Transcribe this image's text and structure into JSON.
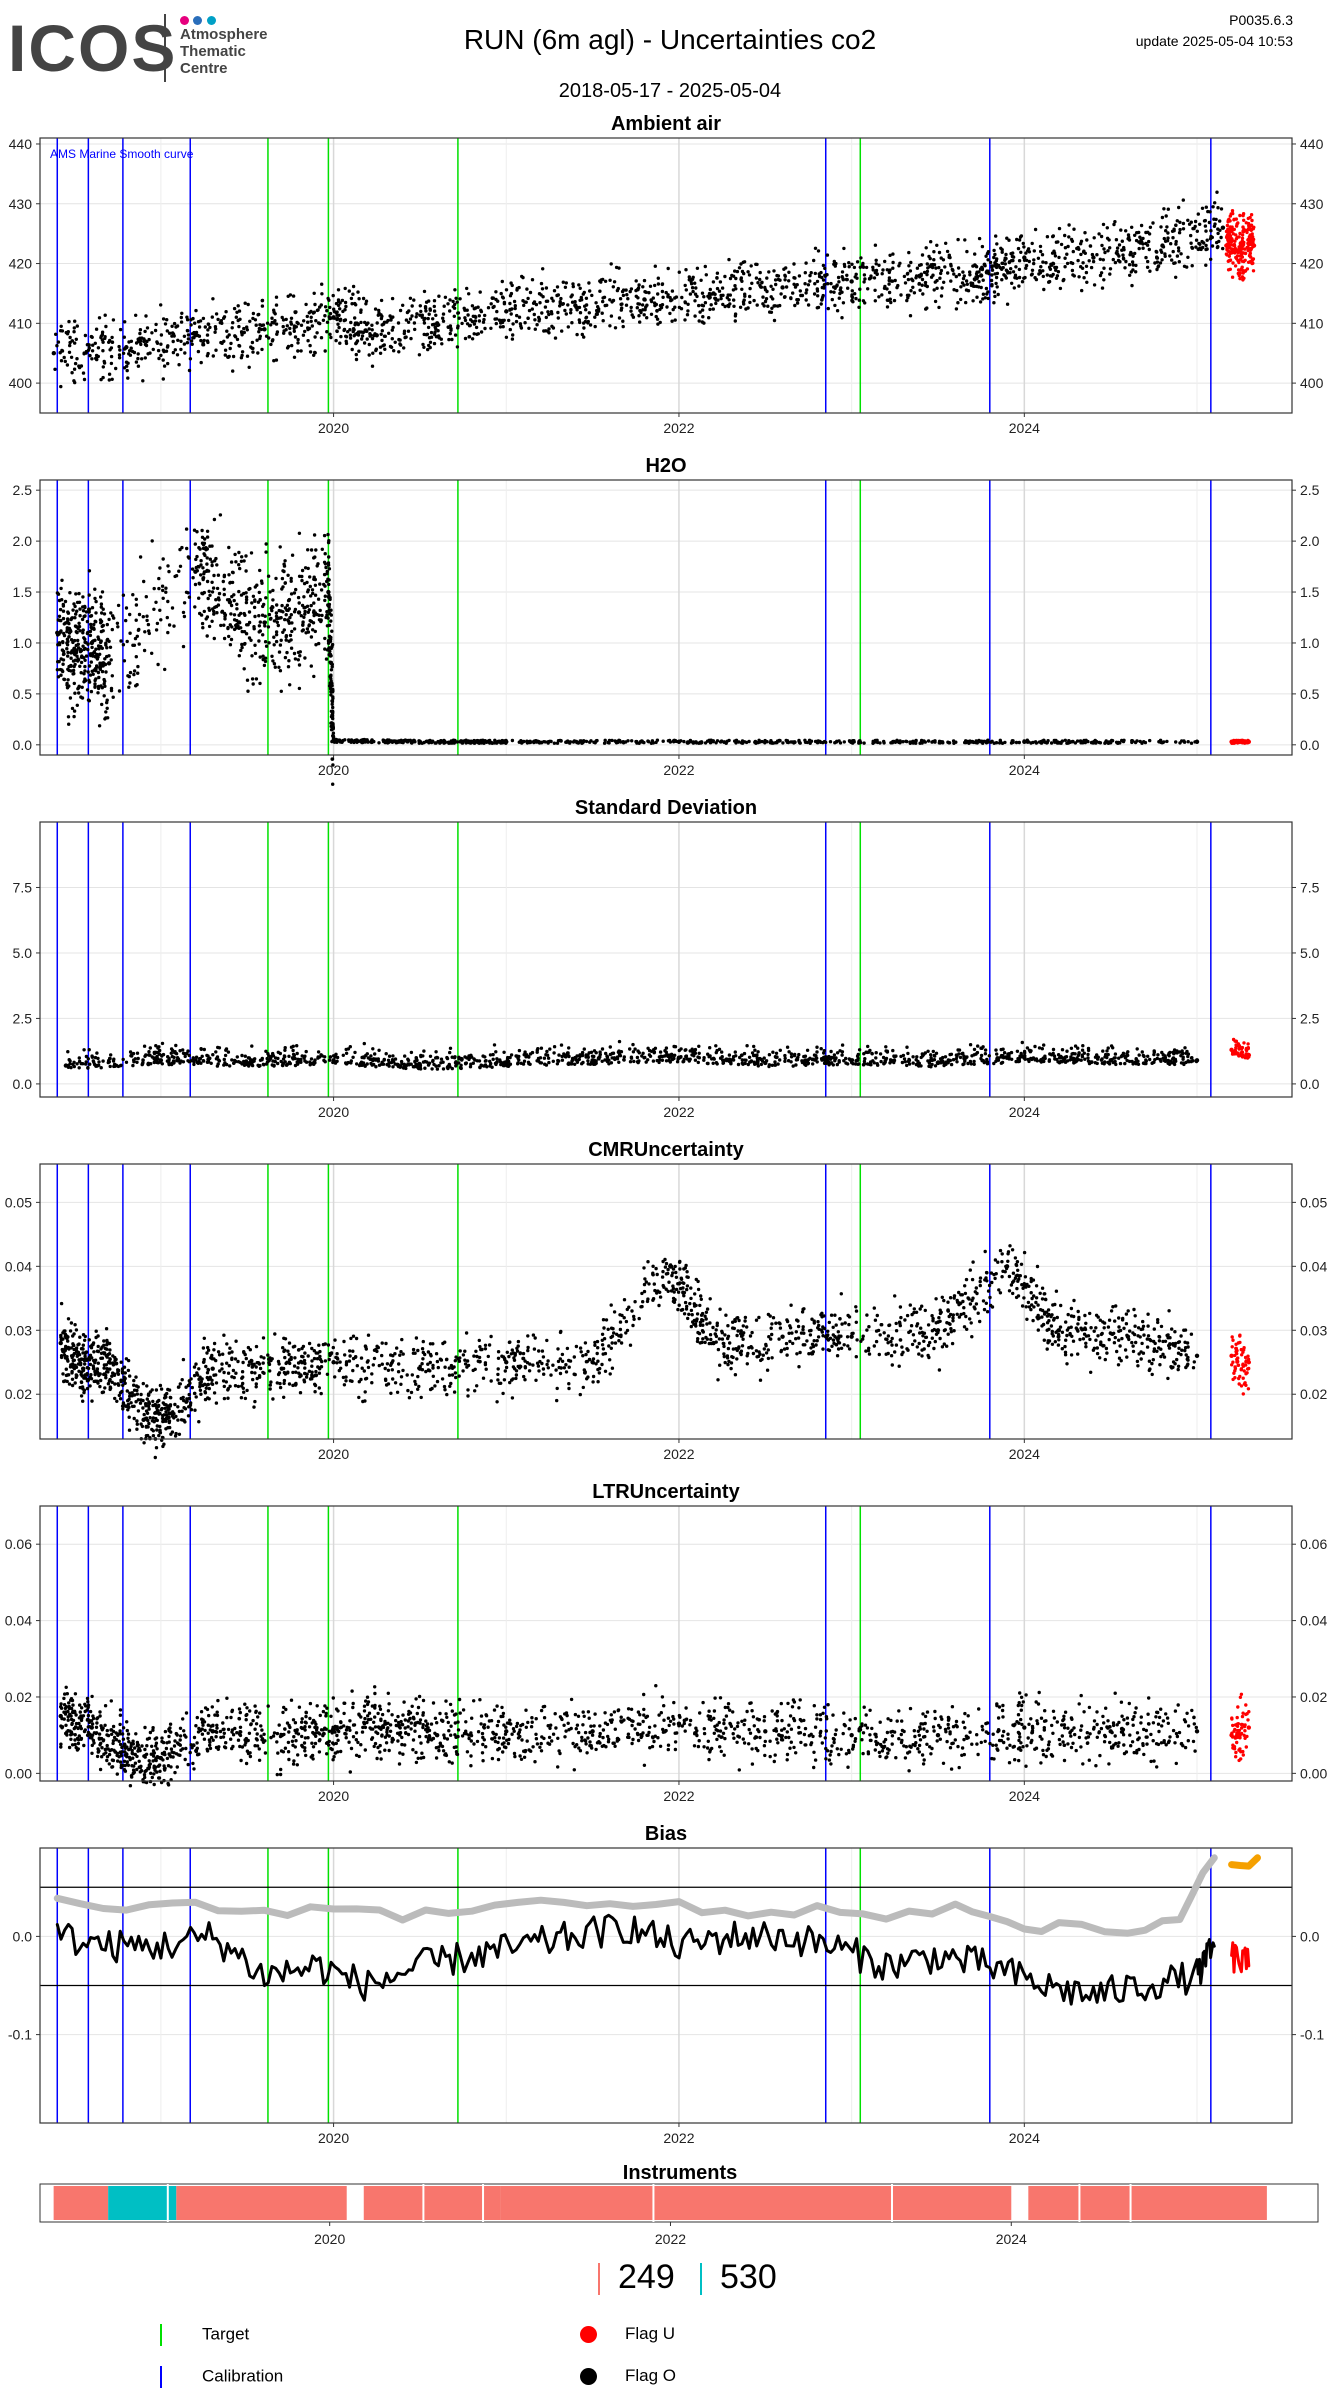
{
  "header": {
    "logo_text": "ICOS",
    "logo_sub": [
      "Atmosphere",
      "Thematic",
      "Centre"
    ],
    "title": "RUN  (6m agl) - Uncertainties co2",
    "date_range": "2018-05-17 - 2025-05-04",
    "version": "P0035.6.3",
    "update": "update  2025-05-04 10:53"
  },
  "colors": {
    "target": "#00e000",
    "calibration": "#0000ff",
    "flag_u": "#ff0000",
    "flag_o": "#000000",
    "smooth": "#bbbbbb",
    "bias_orange": "#f5a000",
    "instrument_a": "#f8766d",
    "instrument_b": "#00bfc4"
  },
  "x_axis_ticks": [
    "2020",
    "2022",
    "2024"
  ],
  "event_lines": {
    "calibration": [
      2018.4,
      2018.58,
      2018.78,
      2019.17,
      2022.85,
      2023.8,
      2025.08
    ],
    "target": [
      2019.62,
      2019.97,
      2020.72,
      2023.05
    ]
  },
  "chart_data": [
    {
      "type": "scatter",
      "title": "Ambient air",
      "annotation": "AMS Marine Smooth curve",
      "ylim": [
        395,
        441
      ],
      "yticks": [
        "400",
        "410",
        "420",
        "430",
        "440"
      ],
      "series": [
        {
          "color": "black",
          "x": [
            2018.38,
            2018.8,
            2019.2,
            2019.6,
            2020.0,
            2020.25,
            2020.6,
            2021.0,
            2021.4,
            2021.8,
            2022.2,
            2022.6,
            2023.0,
            2023.4,
            2023.75,
            2024.0,
            2024.4,
            2024.8,
            2025.15
          ],
          "y": [
            405,
            406,
            408,
            409,
            411,
            408,
            410,
            412,
            413,
            414,
            415,
            416,
            417,
            418,
            418,
            421,
            421,
            423,
            426
          ]
        },
        {
          "name": "Flag U",
          "color": "red",
          "x": [
            2025.17,
            2025.2,
            2025.25,
            2025.3,
            2025.33
          ],
          "y": [
            423,
            424,
            422,
            424,
            423
          ]
        }
      ]
    },
    {
      "type": "scatter",
      "title": "H2O",
      "ylim": [
        -0.1,
        2.6
      ],
      "yticks": [
        "0.0",
        "0.5",
        "1.0",
        "1.5",
        "2.0",
        "2.5"
      ],
      "series": [
        {
          "color": "black",
          "x": [
            2018.4,
            2018.5,
            2018.6,
            2018.7,
            2019.2,
            2019.4,
            2019.6,
            2019.8,
            2019.97,
            2020.0,
            2020.5,
            2021.0,
            2022.0,
            2023.0,
            2024.0,
            2025.0
          ],
          "y": [
            1.1,
            0.9,
            1.0,
            0.8,
            1.7,
            1.4,
            1.2,
            1.3,
            1.5,
            0.04,
            0.03,
            0.03,
            0.03,
            0.03,
            0.03,
            0.03
          ]
        },
        {
          "name": "Flag U",
          "color": "red",
          "x": [
            2025.2,
            2025.3
          ],
          "y": [
            0.03,
            0.03
          ]
        }
      ]
    },
    {
      "type": "scatter",
      "title": "Standard Deviation",
      "ylim": [
        -0.5,
        10
      ],
      "yticks": [
        "0.0",
        "2.5",
        "5.0",
        "7.5"
      ],
      "series": [
        {
          "color": "black",
          "x": [
            2018.45,
            2019.0,
            2019.5,
            2020.0,
            2020.5,
            2021.0,
            2021.5,
            2022.0,
            2022.5,
            2023.0,
            2023.5,
            2024.0,
            2024.5,
            2025.0
          ],
          "y": [
            0.7,
            0.9,
            0.8,
            0.9,
            0.7,
            0.8,
            0.9,
            1.0,
            0.8,
            0.9,
            0.8,
            1.0,
            0.9,
            0.9
          ]
        },
        {
          "name": "Flag U",
          "color": "red",
          "x": [
            2025.2,
            2025.3
          ],
          "y": [
            1.3,
            1.1
          ]
        }
      ]
    },
    {
      "type": "scatter",
      "title": "CMRUncertainty",
      "ylim": [
        0.013,
        0.056
      ],
      "yticks": [
        "0.02",
        "0.03",
        "0.04",
        "0.05"
      ],
      "series": [
        {
          "color": "black",
          "x": [
            2018.42,
            2018.55,
            2018.7,
            2018.9,
            2019.05,
            2019.3,
            2019.7,
            2020.0,
            2020.5,
            2021.0,
            2021.5,
            2021.95,
            2022.2,
            2022.6,
            2023.0,
            2023.5,
            2023.9,
            2024.2,
            2024.6,
            2025.0
          ],
          "y": [
            0.028,
            0.024,
            0.025,
            0.016,
            0.017,
            0.024,
            0.024,
            0.025,
            0.024,
            0.025,
            0.025,
            0.04,
            0.028,
            0.029,
            0.029,
            0.03,
            0.04,
            0.03,
            0.029,
            0.026
          ]
        },
        {
          "name": "Flag U",
          "color": "red",
          "x": [
            2025.2,
            2025.3
          ],
          "y": [
            0.026,
            0.025
          ]
        }
      ]
    },
    {
      "type": "scatter",
      "title": "LTRUncertainty",
      "ylim": [
        -0.002,
        0.07
      ],
      "yticks": [
        "0.00",
        "0.02",
        "0.04",
        "0.06"
      ],
      "series": [
        {
          "color": "black",
          "x": [
            2018.42,
            2018.6,
            2018.8,
            2019.0,
            2019.3,
            2019.7,
            2020.0,
            2020.3,
            2020.6,
            2021.0,
            2021.5,
            2022.0,
            2022.5,
            2023.0,
            2023.5,
            2024.0,
            2024.5,
            2025.0
          ],
          "y": [
            0.015,
            0.012,
            0.005,
            0.004,
            0.011,
            0.01,
            0.011,
            0.013,
            0.01,
            0.011,
            0.011,
            0.013,
            0.011,
            0.01,
            0.01,
            0.012,
            0.011,
            0.011
          ]
        },
        {
          "name": "Flag U",
          "color": "red",
          "x": [
            2025.2,
            2025.3
          ],
          "y": [
            0.01,
            0.012
          ]
        }
      ]
    },
    {
      "type": "line",
      "title": "Bias",
      "ylim": [
        -0.19,
        0.09
      ],
      "yticks": [
        "0.0",
        "-0.1"
      ],
      "hlines": [
        0.05,
        -0.05
      ],
      "series": [
        {
          "color": "black",
          "x": [
            2018.4,
            2018.7,
            2019.0,
            2019.3,
            2019.6,
            2019.9,
            2020.2,
            2020.5,
            2020.8,
            2021.1,
            2021.4,
            2021.7,
            2022.0,
            2022.3,
            2022.6,
            2022.9,
            2023.2,
            2023.5,
            2023.8,
            2024.1,
            2024.4,
            2024.7,
            2025.0,
            2025.1
          ],
          "y": [
            0.0,
            -0.01,
            -0.01,
            0.0,
            -0.04,
            -0.03,
            -0.05,
            -0.03,
            -0.02,
            -0.01,
            0.0,
            0.01,
            -0.01,
            0.0,
            0.0,
            -0.01,
            -0.03,
            -0.02,
            -0.03,
            -0.05,
            -0.06,
            -0.05,
            -0.04,
            -0.01
          ]
        },
        {
          "color": "grey",
          "x": [
            2018.4,
            2018.8,
            2019.2,
            2019.6,
            2020.0,
            2020.4,
            2020.8,
            2021.2,
            2021.6,
            2022.0,
            2022.4,
            2022.8,
            2023.2,
            2023.6,
            2023.9,
            2024.2,
            2024.6,
            2024.9,
            2025.1
          ],
          "y": [
            0.035,
            0.03,
            0.03,
            0.025,
            0.03,
            0.02,
            0.03,
            0.04,
            0.03,
            0.03,
            0.02,
            0.03,
            0.02,
            0.03,
            0.01,
            0.01,
            0.0,
            0.02,
            0.08
          ]
        },
        {
          "name": "Flag U",
          "color": "red",
          "x": [
            2025.2,
            2025.3
          ],
          "y": [
            -0.02,
            -0.03
          ]
        },
        {
          "color": "orange",
          "x": [
            2025.2,
            2025.35
          ],
          "y": [
            0.07,
            0.08
          ]
        }
      ]
    }
  ],
  "instruments": {
    "title": "Instruments",
    "counts": [
      "249",
      "530"
    ]
  },
  "legend": {
    "target": "Target",
    "calibration": "Calibration",
    "flag_u": "Flag U",
    "flag_o": "Flag O"
  }
}
